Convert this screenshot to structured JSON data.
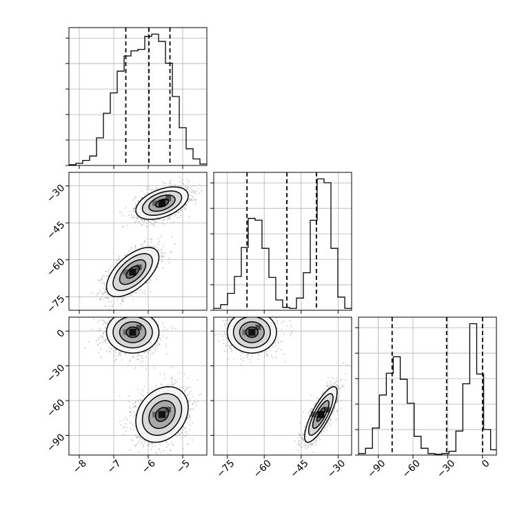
{
  "chart_data": {
    "type": "corner",
    "title": "",
    "parameters": [
      {
        "label": "",
        "range": [
          -8.3,
          -4.3
        ],
        "ticks": [
          -8,
          -7,
          -6,
          -5
        ],
        "tick_labels": [
          "−8",
          "−7",
          "−6",
          "−5"
        ]
      },
      {
        "label": "",
        "range": [
          -80.5,
          -24.5
        ],
        "ticks": [
          -75,
          -60,
          -45,
          -30
        ],
        "tick_labels": [
          "−75",
          "−60",
          "−45",
          "−30"
        ]
      },
      {
        "label": "",
        "range": [
          -107,
          12
        ],
        "ticks": [
          -90,
          -60,
          -30,
          0
        ],
        "tick_labels": [
          "−90",
          "−60",
          "−30",
          "0"
        ]
      }
    ],
    "histograms": [
      {
        "param": 0,
        "edges": [
          -8.3,
          -8.1,
          -7.9,
          -7.7,
          -7.5,
          -7.3,
          -7.1,
          -6.9,
          -6.7,
          -6.5,
          -6.3,
          -6.1,
          -5.9,
          -5.7,
          -5.5,
          -5.3,
          -5.1,
          -4.9,
          -4.7,
          -4.5,
          -4.3
        ],
        "counts": [
          1,
          3,
          7,
          13,
          38,
          72,
          100,
          130,
          151,
          158,
          160,
          178,
          181,
          171,
          141,
          95,
          52,
          23,
          9,
          2
        ],
        "quantile_lines": [
          -6.65,
          -5.98,
          -5.37
        ]
      },
      {
        "param": 1,
        "edges": [
          -80.5,
          -77.7,
          -74.9,
          -72.1,
          -69.3,
          -66.5,
          -63.7,
          -60.9,
          -58.1,
          -55.3,
          -52.5,
          -49.7,
          -46.9,
          -44.1,
          -41.3,
          -38.5,
          -35.7,
          -32.9,
          -30.1,
          -27.3,
          -24.5
        ],
        "counts": [
          2,
          6,
          18,
          36,
          67,
          98,
          96,
          66,
          35,
          11,
          3,
          2,
          13,
          40,
          96,
          140,
          136,
          66,
          14,
          2
        ],
        "quantile_lines": [
          -67.0,
          -50.8,
          -38.8
        ]
      },
      {
        "param": 2,
        "edges": [
          -107,
          -101,
          -95,
          -89,
          -83,
          -77,
          -71,
          -65,
          -59,
          -53,
          -47,
          -41,
          -35,
          -29,
          -23,
          -17,
          -11,
          -5,
          1,
          7,
          12
        ],
        "counts": [
          2,
          9,
          36,
          80,
          109,
          131,
          101,
          69,
          25,
          9,
          2,
          1,
          2,
          5,
          32,
          95,
          175,
          108,
          34,
          7
        ],
        "quantile_lines": [
          -78.0,
          -31.0,
          0.0
        ]
      }
    ],
    "pairs": [
      {
        "xparam": 0,
        "yparam": 1,
        "modes": [
          {
            "center": [
              -6.45,
              -65.0
            ],
            "sx": 0.38,
            "sy": 5.0,
            "rho": 0.6,
            "weight": 0.5
          },
          {
            "center": [
              -5.6,
              -37.0
            ],
            "sx": 0.38,
            "sy": 3.3,
            "rho": 0.45,
            "weight": 0.5
          }
        ]
      },
      {
        "xparam": 0,
        "yparam": 2,
        "modes": [
          {
            "center": [
              -6.45,
              -1.0
            ],
            "sx": 0.38,
            "sy": 9.0,
            "rho": 0.0,
            "weight": 0.5
          },
          {
            "center": [
              -5.6,
              -72.0
            ],
            "sx": 0.38,
            "sy": 12.0,
            "rho": 0.25,
            "weight": 0.5
          }
        ]
      },
      {
        "xparam": 1,
        "yparam": 2,
        "modes": [
          {
            "center": [
              -65.0,
              -1.0
            ],
            "sx": 5.0,
            "sy": 9.0,
            "rho": 0.0,
            "weight": 0.5
          },
          {
            "center": [
              -37.0,
              -72.0
            ],
            "sx": 3.3,
            "sy": 12.0,
            "rho": 0.8,
            "weight": 0.5
          }
        ]
      }
    ],
    "contour_levels_sigma": [
      0.5,
      1.0,
      1.5,
      2.0
    ],
    "grid": true,
    "colors": {
      "line": "#000000",
      "grid": "#b0b0b0",
      "scatter": "#7a7a7a",
      "fill_light": "#f5f5f5",
      "fill_mid1": "#d8d8d8",
      "fill_mid2": "#a8a8a8",
      "fill_dark": "#6a6a6a",
      "peak": "#111111"
    }
  }
}
